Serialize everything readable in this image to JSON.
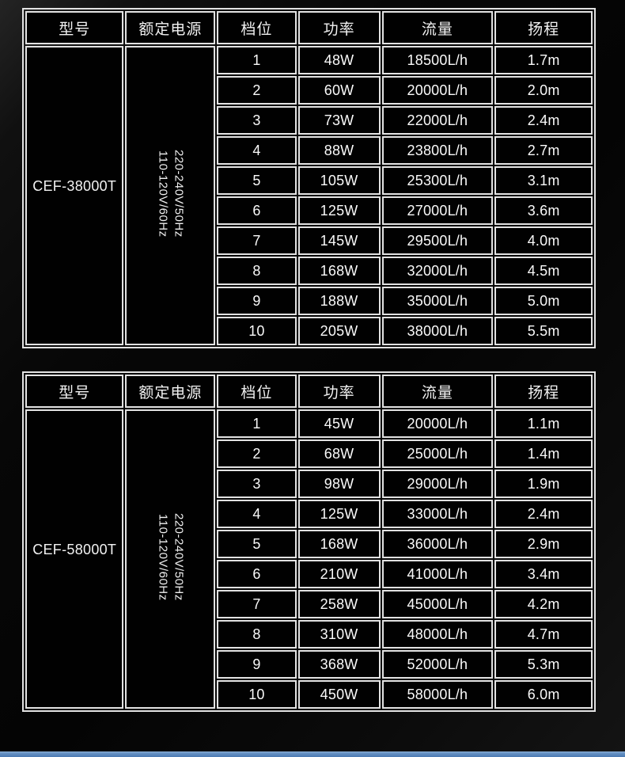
{
  "page": {
    "background_color": "#050505",
    "border_color": "#e2e2e2",
    "accent_bar_color": "#4c7ab1",
    "accent_bar_highlight": "#8cb0d6"
  },
  "tables": [
    {
      "headers": [
        "型号",
        "额定电源",
        "档位",
        "功率",
        "流量",
        "扬程"
      ],
      "model": "CEF-38000T",
      "power_supply_lines": [
        "220-240V/50Hz",
        "110-120V/60Hz"
      ],
      "rows": [
        {
          "gear": "1",
          "power": "48W",
          "flow": "18500L/h",
          "head": "1.7m"
        },
        {
          "gear": "2",
          "power": "60W",
          "flow": "20000L/h",
          "head": "2.0m"
        },
        {
          "gear": "3",
          "power": "73W",
          "flow": "22000L/h",
          "head": "2.4m"
        },
        {
          "gear": "4",
          "power": "88W",
          "flow": "23800L/h",
          "head": "2.7m"
        },
        {
          "gear": "5",
          "power": "105W",
          "flow": "25300L/h",
          "head": "3.1m"
        },
        {
          "gear": "6",
          "power": "125W",
          "flow": "27000L/h",
          "head": "3.6m"
        },
        {
          "gear": "7",
          "power": "145W",
          "flow": "29500L/h",
          "head": "4.0m"
        },
        {
          "gear": "8",
          "power": "168W",
          "flow": "32000L/h",
          "head": "4.5m"
        },
        {
          "gear": "9",
          "power": "188W",
          "flow": "35000L/h",
          "head": "5.0m"
        },
        {
          "gear": "10",
          "power": "205W",
          "flow": "38000L/h",
          "head": "5.5m"
        }
      ]
    },
    {
      "headers": [
        "型号",
        "额定电源",
        "档位",
        "功率",
        "流量",
        "扬程"
      ],
      "model": "CEF-58000T",
      "power_supply_lines": [
        "220-240V/50Hz",
        "110-120V/60Hz"
      ],
      "rows": [
        {
          "gear": "1",
          "power": "45W",
          "flow": "20000L/h",
          "head": "1.1m"
        },
        {
          "gear": "2",
          "power": "68W",
          "flow": "25000L/h",
          "head": "1.4m"
        },
        {
          "gear": "3",
          "power": "98W",
          "flow": "29000L/h",
          "head": "1.9m"
        },
        {
          "gear": "4",
          "power": "125W",
          "flow": "33000L/h",
          "head": "2.4m"
        },
        {
          "gear": "5",
          "power": "168W",
          "flow": "36000L/h",
          "head": "2.9m"
        },
        {
          "gear": "6",
          "power": "210W",
          "flow": "41000L/h",
          "head": "3.4m"
        },
        {
          "gear": "7",
          "power": "258W",
          "flow": "45000L/h",
          "head": "4.2m"
        },
        {
          "gear": "8",
          "power": "310W",
          "flow": "48000L/h",
          "head": "4.7m"
        },
        {
          "gear": "9",
          "power": "368W",
          "flow": "52000L/h",
          "head": "5.3m"
        },
        {
          "gear": "10",
          "power": "450W",
          "flow": "58000L/h",
          "head": "6.0m"
        }
      ]
    }
  ]
}
